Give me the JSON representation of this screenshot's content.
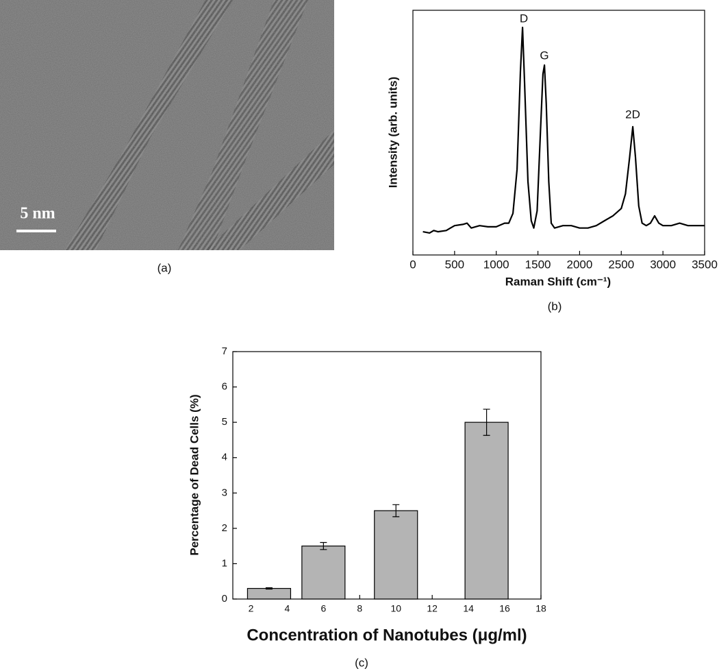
{
  "figure_a": {
    "scale_bar": "5 nm",
    "caption": "(a)"
  },
  "chart_data": [
    {
      "type": "line",
      "caption": "(b)",
      "x_label": "Raman Shift (cm⁻¹)",
      "y_label": "Intensity (arb. units)",
      "annotations": [
        "D",
        "G",
        "2D"
      ],
      "color": "#000000",
      "x": [
        120,
        200,
        250,
        300,
        400,
        450,
        500,
        600,
        650,
        700,
        800,
        900,
        1000,
        1100,
        1150,
        1200,
        1250,
        1290,
        1315,
        1340,
        1380,
        1420,
        1450,
        1490,
        1530,
        1560,
        1578,
        1600,
        1630,
        1660,
        1700,
        1800,
        1900,
        2000,
        2100,
        2200,
        2300,
        2400,
        2500,
        2550,
        2600,
        2638,
        2670,
        2710,
        2750,
        2800,
        2850,
        2900,
        2950,
        3000,
        3100,
        3200,
        3300,
        3400,
        3500
      ],
      "values": [
        0.095,
        0.09,
        0.1,
        0.095,
        0.1,
        0.11,
        0.12,
        0.125,
        0.13,
        0.11,
        0.12,
        0.115,
        0.115,
        0.13,
        0.13,
        0.17,
        0.35,
        0.75,
        0.93,
        0.7,
        0.3,
        0.14,
        0.11,
        0.18,
        0.5,
        0.74,
        0.776,
        0.62,
        0.3,
        0.13,
        0.11,
        0.12,
        0.12,
        0.11,
        0.11,
        0.12,
        0.14,
        0.16,
        0.19,
        0.25,
        0.4,
        0.524,
        0.4,
        0.2,
        0.13,
        0.12,
        0.13,
        0.16,
        0.13,
        0.12,
        0.12,
        0.13,
        0.12,
        0.12,
        0.12
      ],
      "xlim": [
        0,
        3500
      ],
      "xticks": [
        0,
        500,
        1000,
        1500,
        2000,
        2500,
        3000,
        3500
      ],
      "ylim": [
        0,
        1
      ]
    },
    {
      "type": "bar",
      "caption": "(c)",
      "x_label": "Concentration of Nanotubes (μg/ml)",
      "y_label": "Percentage of Dead Cells (%)",
      "color": "#b4b4b4",
      "x": [
        3,
        6,
        10,
        15
      ],
      "values": [
        0.3,
        1.5,
        2.5,
        5.0
      ],
      "errors": [
        0.02,
        0.1,
        0.17,
        0.37
      ],
      "xlim": [
        1,
        18
      ],
      "xticks": [
        2,
        4,
        6,
        8,
        10,
        12,
        14,
        16,
        18
      ],
      "ylim": [
        0,
        7
      ],
      "yticks": [
        0,
        1,
        2,
        3,
        4,
        5,
        6,
        7
      ]
    }
  ]
}
